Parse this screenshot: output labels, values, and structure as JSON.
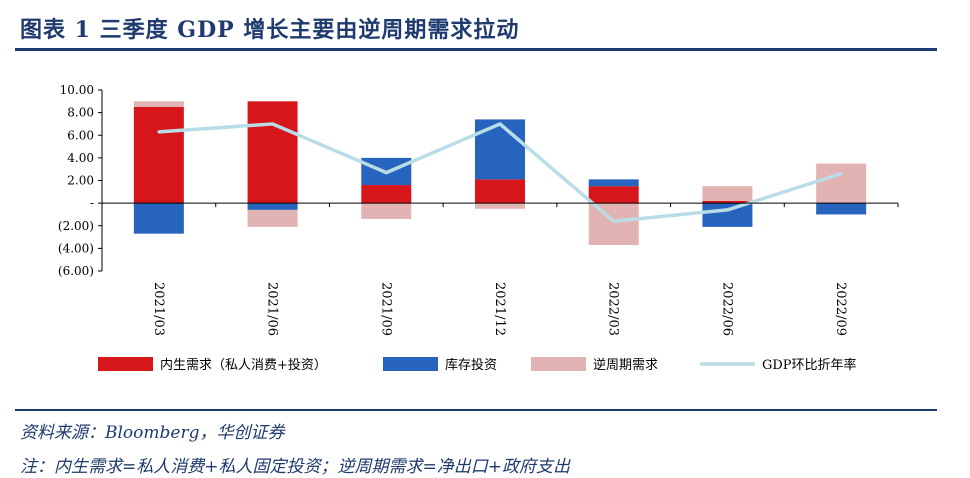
{
  "header": {
    "title": "图表 1    三季度 GDP 增长主要由逆周期需求拉动"
  },
  "footer": {
    "source": "资料来源：Bloomberg，华创证券",
    "note": "注：内生需求=私人消费+私人固定投资；逆周期需求=净出口+政府支出"
  },
  "colors": {
    "domestic": "#d7161c",
    "inventory": "#2764bd",
    "countercyclical": "#e2b3b3",
    "gdp": "#b9dde6",
    "accent": "#1f3a6e"
  },
  "chart_data": {
    "type": "bar",
    "stacked": true,
    "categories": [
      "2021/03",
      "2021/06",
      "2021/09",
      "2021/12",
      "2022/03",
      "2022/06",
      "2022/09"
    ],
    "series": [
      {
        "name": "内生需求（私人消费+投资）",
        "kind": "bar",
        "color": "#d7161c",
        "values": [
          8.5,
          9.0,
          1.6,
          2.1,
          1.5,
          0.2,
          0.0
        ]
      },
      {
        "name": "库存投资",
        "kind": "bar",
        "color": "#2764bd",
        "values": [
          -2.7,
          -0.6,
          2.4,
          5.3,
          0.6,
          -2.1,
          -1.0
        ]
      },
      {
        "name": "逆周期需求",
        "kind": "bar",
        "color": "#e2b3b3",
        "values": [
          0.5,
          -1.5,
          -1.4,
          -0.5,
          -3.7,
          1.3,
          3.5
        ]
      },
      {
        "name": "GDP环比折年率",
        "kind": "line",
        "color": "#b9dde6",
        "values": [
          6.3,
          7.0,
          2.7,
          7.0,
          -1.6,
          -0.6,
          2.6
        ]
      }
    ],
    "ylim": [
      -6,
      10
    ],
    "yticks": [
      10,
      8,
      6,
      4,
      2,
      0,
      -2,
      -4,
      -6
    ],
    "ytick_labels": [
      "10.00",
      "8.00",
      "6.00",
      "4.00",
      "2.00",
      "-",
      "(2.00)",
      "(4.00)",
      "(6.00)"
    ],
    "legend_position": "bottom",
    "xlabel": "",
    "ylabel": ""
  }
}
